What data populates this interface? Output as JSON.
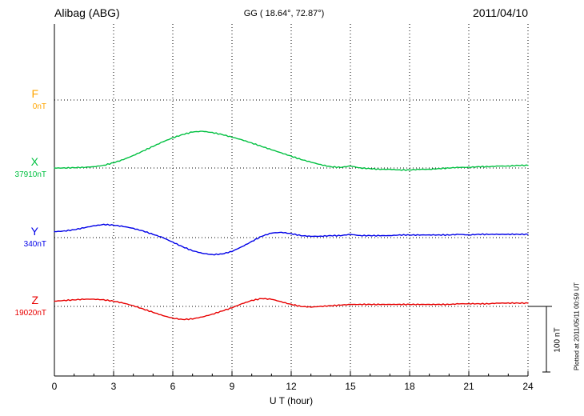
{
  "header": {
    "station": "Alibag (ABG)",
    "coords": "GG ( 18.64°,  72.87°)",
    "date": "2011/04/10"
  },
  "xaxis": {
    "label": "U T (hour)"
  },
  "scalebar": {
    "label": "100 nT"
  },
  "footer_note": "Plotted at 2011/05/11 00:59 UT",
  "chart_data": {
    "type": "line",
    "title": "Alibag (ABG)",
    "xlabel": "U T (hour)",
    "x_range": [
      0,
      24
    ],
    "x_ticks": [
      0,
      3,
      6,
      9,
      12,
      15,
      18,
      21,
      24
    ],
    "x_step_hours": 0.5,
    "y_unit": "nT deviation from component baseline",
    "scale_bar_nT": 100,
    "grid": "dotted vertical at 3h intervals, dotted horizontal at each component baseline",
    "series": [
      {
        "name": "F",
        "baseline_label": "0nT",
        "color": "#FFA500",
        "values": []
      },
      {
        "name": "X",
        "baseline_label": "37910nT",
        "color": "#00C040",
        "values": [
          0,
          0,
          0.5,
          1,
          2,
          4,
          8,
          13,
          19,
          26,
          33,
          40,
          46,
          51,
          55,
          56,
          54,
          51,
          47,
          43,
          38,
          33,
          28,
          23,
          18,
          13,
          9,
          5,
          2,
          1,
          3,
          0,
          -1,
          -2,
          -2,
          -3,
          -3,
          -2,
          -2,
          -1,
          0,
          1,
          1,
          2,
          2,
          3,
          3,
          4,
          4
        ]
      },
      {
        "name": "Y",
        "baseline_label": "340nT",
        "color": "#0000E8",
        "values": [
          9,
          10,
          12,
          15,
          18,
          20,
          19,
          17,
          14,
          10,
          5,
          0,
          -7,
          -14,
          -20,
          -24,
          -26,
          -25,
          -21,
          -14,
          -6,
          2,
          7,
          8,
          6,
          3,
          2,
          2,
          3,
          3,
          5,
          3,
          3,
          3,
          3,
          4,
          4,
          4,
          4,
          4,
          4,
          5,
          4,
          5,
          5,
          5,
          5,
          5,
          5
        ]
      },
      {
        "name": "Z",
        "baseline_label": "19020nT",
        "color": "#E80000",
        "values": [
          8,
          9,
          10,
          11,
          11,
          10,
          8,
          5,
          1,
          -4,
          -9,
          -14,
          -18,
          -20,
          -19,
          -16,
          -12,
          -7,
          -2,
          4,
          9,
          12,
          11,
          7,
          3,
          0,
          -1,
          0,
          1,
          2,
          3,
          3,
          3,
          3,
          3,
          3,
          3,
          3,
          3,
          3,
          3,
          4,
          4,
          4,
          4,
          5,
          5,
          5,
          5
        ]
      }
    ]
  }
}
